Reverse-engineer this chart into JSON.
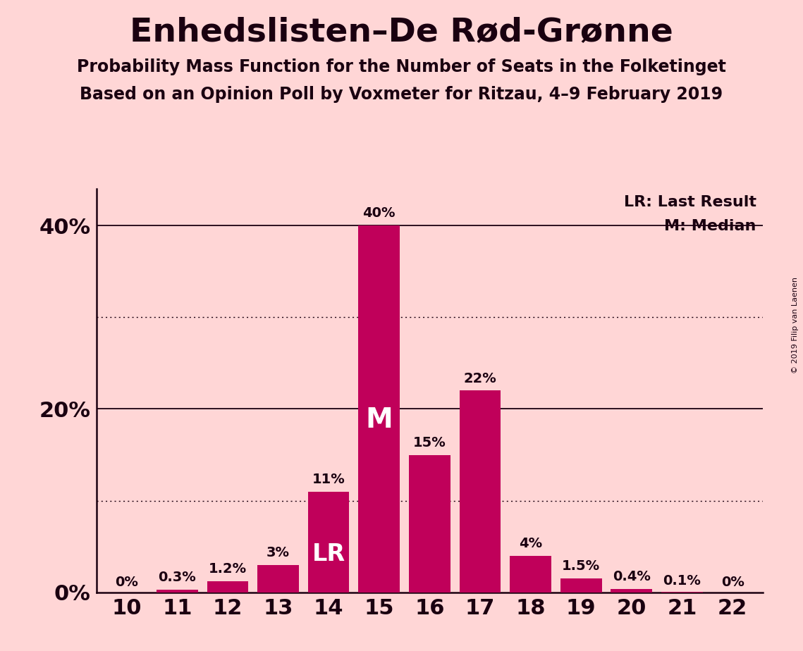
{
  "title": "Enhedslisten–De Rød-Grønne",
  "subtitle1": "Probability Mass Function for the Number of Seats in the Folketinget",
  "subtitle2": "Based on an Opinion Poll by Voxmeter for Ritzau, 4–9 February 2019",
  "copyright": "© 2019 Filip van Laenen",
  "seats": [
    10,
    11,
    12,
    13,
    14,
    15,
    16,
    17,
    18,
    19,
    20,
    21,
    22
  ],
  "probabilities": [
    0.0,
    0.3,
    1.2,
    3.0,
    11.0,
    40.0,
    15.0,
    22.0,
    4.0,
    1.5,
    0.4,
    0.1,
    0.0
  ],
  "labels": [
    "0%",
    "0.3%",
    "1.2%",
    "3%",
    "11%",
    "40%",
    "15%",
    "22%",
    "4%",
    "1.5%",
    "0.4%",
    "0.1%",
    "0%"
  ],
  "bar_color": "#C0005A",
  "background_color": "#FFD6D6",
  "text_color": "#1A0010",
  "lr_seat": 14,
  "median_seat": 15,
  "ylim": [
    0,
    44
  ],
  "ylabel_ticks": [
    0,
    20,
    40
  ],
  "ylabel_labels": [
    "0%",
    "20%",
    "40%"
  ],
  "solid_gridlines": [
    20,
    40
  ],
  "dotted_gridlines": [
    10,
    30
  ],
  "legend_lr": "LR: Last Result",
  "legend_m": "M: Median"
}
